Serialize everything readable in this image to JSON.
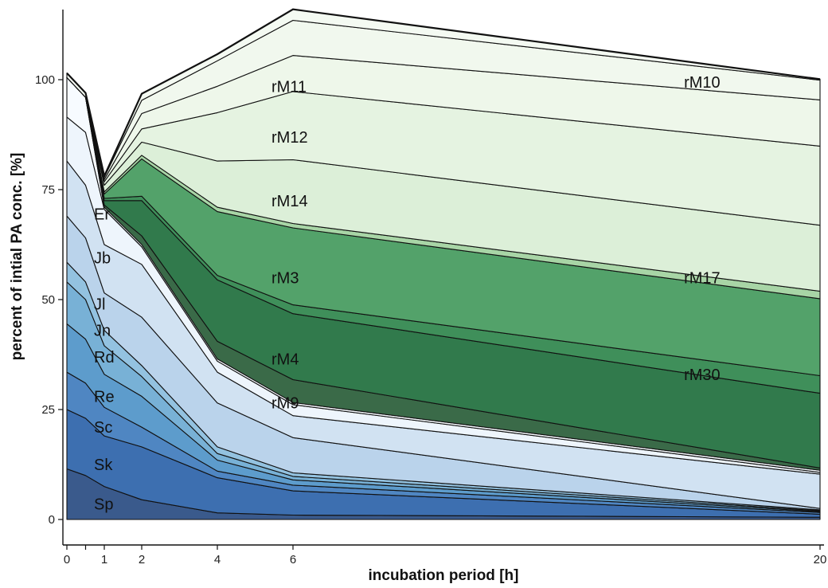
{
  "chart_data": {
    "type": "area",
    "stacked": true,
    "title": "",
    "xlabel": "incubation period [h]",
    "ylabel": "percent of intial PA conc. [%]",
    "x": [
      0,
      0.5,
      1,
      2,
      4,
      6,
      20
    ],
    "xticks": [
      0,
      1,
      2,
      4,
      6,
      20
    ],
    "yticks": [
      0,
      25,
      50,
      75,
      100
    ],
    "xlim": [
      0,
      20
    ],
    "ylim": [
      -3,
      115
    ],
    "grid": false,
    "legend": "none",
    "series": [
      {
        "name": "Sp",
        "color": "#3a5a8c",
        "values": [
          11.5,
          10,
          7.5,
          4.5,
          1.5,
          1.0,
          0.5
        ]
      },
      {
        "name": "Sk",
        "color": "#3d6fb0",
        "values": [
          13.5,
          13,
          11.5,
          12,
          8,
          5.5,
          0.7
        ]
      },
      {
        "name": "Sc",
        "color": "#4f86c2",
        "values": [
          8.5,
          8,
          6.5,
          4.5,
          1.5,
          1.3,
          0.4
        ]
      },
      {
        "name": "Re",
        "color": "#5d9ccc",
        "values": [
          11,
          10,
          7.5,
          7,
          2.5,
          1.2,
          0.2
        ]
      },
      {
        "name": "Rd",
        "color": "#78b1d6",
        "values": [
          9.5,
          9,
          6.5,
          4.5,
          1.5,
          0.8,
          0.2
        ]
      },
      {
        "name": "Jn",
        "color": "#93c2e0",
        "values": [
          4.5,
          4,
          3.5,
          2.5,
          1.5,
          0.8,
          0.2
        ]
      },
      {
        "name": "Jl",
        "color": "#bad3eb",
        "values": [
          10.5,
          10,
          8.5,
          11,
          10,
          8,
          0.3
        ]
      },
      {
        "name": "Jb",
        "color": "#d1e2f2",
        "values": [
          12.5,
          12,
          11,
          12,
          7,
          5,
          7.8
        ]
      },
      {
        "name": "Er",
        "color": "#eef5fc",
        "values": [
          10,
          12,
          8,
          4,
          2.5,
          2.5,
          0.4
        ]
      },
      {
        "name": "",
        "color": "#f7fbff",
        "values": [
          9,
          8,
          0.5,
          0.5,
          0.5,
          0.5,
          0.5
        ]
      },
      {
        "name": "rM9",
        "color": "#3a6a48",
        "values": [
          0,
          0,
          0.5,
          2,
          4,
          5.2,
          0.5
        ]
      },
      {
        "name": "rM4",
        "color": "#317a4c",
        "values": [
          0,
          0,
          1,
          8,
          14,
          15,
          17
        ]
      },
      {
        "name": "rM30",
        "color": "#3f8f5a",
        "values": [
          0,
          0,
          0.5,
          1,
          1,
          2,
          4
        ]
      },
      {
        "name": "rM3",
        "color": "#53a26a",
        "values": [
          0,
          0,
          1,
          8.5,
          14.5,
          17.5,
          17.5
        ]
      },
      {
        "name": "rM17",
        "color": "#a8d5a6",
        "values": [
          0,
          0,
          0.5,
          0.8,
          1,
          1,
          1.7
        ]
      },
      {
        "name": "rM14",
        "color": "#dcefd8",
        "values": [
          0,
          0,
          1.5,
          3,
          10.5,
          14.5,
          15
        ]
      },
      {
        "name": "rM12",
        "color": "#e5f3e1",
        "values": [
          0,
          0,
          0.8,
          3,
          11,
          15.5,
          18
        ]
      },
      {
        "name": "",
        "color": "#eef7ea",
        "values": [
          0,
          0,
          0.5,
          3.5,
          6,
          8.2,
          10.5
        ]
      },
      {
        "name": "rM11",
        "color": "#f1f8ee",
        "values": [
          0,
          0,
          0.5,
          3,
          5.8,
          8,
          4.5
        ]
      },
      {
        "name": "rM10",
        "color": "#f4faf2",
        "values": [
          1,
          1,
          0.3,
          1.5,
          1.5,
          2.5,
          0.2
        ]
      }
    ],
    "annotations": [
      {
        "text": "Sp",
        "x": 1.0,
        "y": 3.5
      },
      {
        "text": "Sk",
        "x": 1.0,
        "y": 12.5
      },
      {
        "text": "Sc",
        "x": 1.0,
        "y": 21
      },
      {
        "text": "Re",
        "x": 1.0,
        "y": 28
      },
      {
        "text": "Rd",
        "x": 1.0,
        "y": 37
      },
      {
        "text": "Jn",
        "x": 1.0,
        "y": 43
      },
      {
        "text": "Jl",
        "x": 1.0,
        "y": 49
      },
      {
        "text": "Jb",
        "x": 1.0,
        "y": 59.5
      },
      {
        "text": "Er",
        "x": 1.0,
        "y": 69.5
      },
      {
        "text": "rM9",
        "x": 6.0,
        "y": 26.5
      },
      {
        "text": "rM4",
        "x": 6.0,
        "y": 36.5
      },
      {
        "text": "rM3",
        "x": 6.0,
        "y": 55
      },
      {
        "text": "rM14",
        "x": 6.0,
        "y": 72.5
      },
      {
        "text": "rM12",
        "x": 6.0,
        "y": 87
      },
      {
        "text": "rM11",
        "x": 6.0,
        "y": 98.5
      },
      {
        "text": "rM10",
        "x": 17.0,
        "y": 99.5
      },
      {
        "text": "rM17",
        "x": 17.0,
        "y": 55
      },
      {
        "text": "rM30",
        "x": 17.0,
        "y": 33
      }
    ]
  }
}
